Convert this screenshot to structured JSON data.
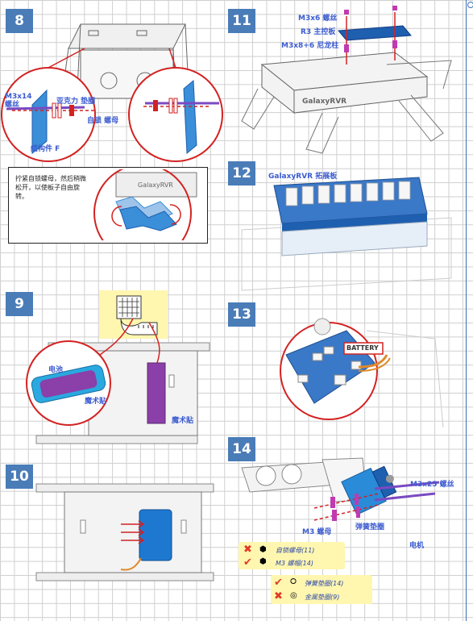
{
  "steps": [
    {
      "number": "8"
    },
    {
      "number": "9"
    },
    {
      "number": "10"
    },
    {
      "number": "11"
    },
    {
      "number": "12"
    },
    {
      "number": "13"
    },
    {
      "number": "14"
    }
  ],
  "step8": {
    "screw_label": "M3x14\n螺丝",
    "washer_label": "亚克力 垫圈",
    "nut_label": "自锁 螺母",
    "part_label": "结构件 F",
    "note": "拧紧自锁螺母，然后稍微松开，以使板子自由旋转。",
    "board_text": "GalaxyRVR"
  },
  "step9": {
    "battery_label": "电池",
    "velcro_label_1": "魔术贴",
    "velcro_label_2": "魔术贴"
  },
  "step11": {
    "screw_label": "M3x6 螺丝",
    "board_label": "R3 主控板",
    "standoff_label": "M3x8+6 尼龙柱",
    "rover_text": "GalaxyRVR"
  },
  "step12": {
    "shield_label": "GalaxyRVR 拓展板"
  },
  "step13": {
    "battery_port_label": "BATTERY"
  },
  "step14": {
    "screw_label": "M3x25 螺丝",
    "nut_label": "M3 螺母",
    "spring_washer_label": "弹簧垫圈",
    "motor_label": "电机",
    "legend_nuts": [
      {
        "mark": "✖",
        "color": "#e03a2a",
        "text": "自锁螺母(11)"
      },
      {
        "mark": "✔",
        "color": "#e03a2a",
        "text": "M3 螺帽(14)"
      }
    ],
    "legend_washers": [
      {
        "mark": "✔",
        "color": "#e03a2a",
        "text": "弹簧垫圈(14)"
      },
      {
        "mark": "✖",
        "color": "#e03a2a",
        "text": "金属垫圈(9)"
      }
    ]
  },
  "colors": {
    "badge": "#4a7cb8",
    "label_blue": "#3b5bd0",
    "accent_red": "#d63a3a",
    "part_blue": "#3a8fd8",
    "board_blue": "#1f5fb0",
    "legend_bg": "#fff6b0"
  }
}
